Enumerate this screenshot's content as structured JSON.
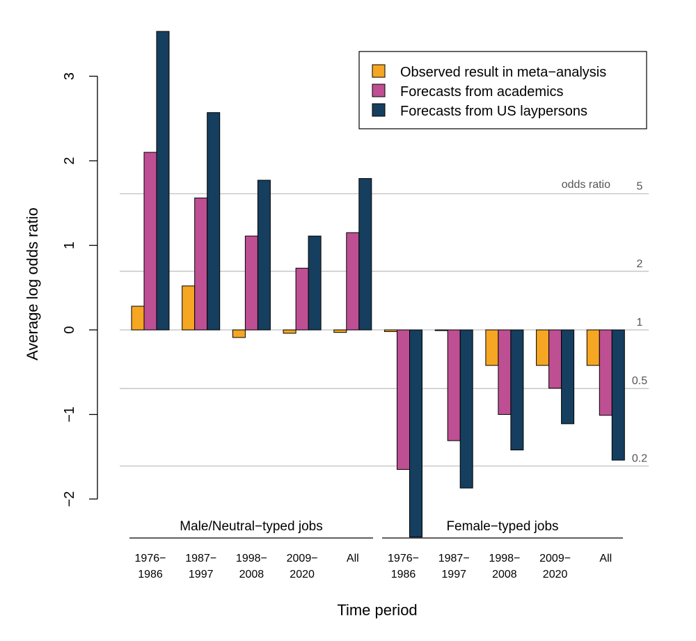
{
  "chart_data": {
    "type": "bar",
    "title": "",
    "xlabel": "Time period",
    "ylabel": "Average log odds ratio",
    "ylim": [
      -2.45,
      3.6
    ],
    "yticks": [
      -2,
      -1,
      0,
      1,
      2,
      3
    ],
    "ytick_labels": [
      "−2",
      "−1",
      "0",
      "1",
      "2",
      "3"
    ],
    "groups": [
      {
        "label": "Male/Neutral−typed jobs",
        "categories": [
          [
            "1976−",
            "1986"
          ],
          [
            "1987−",
            "1997"
          ],
          [
            "1998−",
            "2008"
          ],
          [
            "2009−",
            "2020"
          ],
          [
            "All"
          ]
        ]
      },
      {
        "label": "Female−typed jobs",
        "categories": [
          [
            "1976−",
            "1986"
          ],
          [
            "1987−",
            "1997"
          ],
          [
            "1998−",
            "2008"
          ],
          [
            "2009−",
            "2020"
          ],
          [
            "All"
          ]
        ]
      }
    ],
    "series": [
      {
        "name": "Observed result in meta−analysis",
        "color": "#F5A623",
        "values": [
          0.28,
          0.52,
          -0.09,
          -0.04,
          -0.03,
          -0.02,
          0.0,
          -0.42,
          -0.42,
          -0.42
        ]
      },
      {
        "name": "Forecasts from academics",
        "color": "#BE4F93",
        "values": [
          2.1,
          1.56,
          1.11,
          0.73,
          1.15,
          -1.65,
          -1.31,
          -1.0,
          -0.69,
          -1.01
        ]
      },
      {
        "name": "Forecasts from US laypersons",
        "color": "#163E5E",
        "values": [
          3.53,
          2.57,
          1.77,
          1.11,
          1.79,
          -2.45,
          -1.87,
          -1.42,
          -1.11,
          -1.54
        ]
      }
    ],
    "odds_ratio_axis": {
      "title": "odds ratio",
      "ticks": [
        {
          "label": "5",
          "value": 5
        },
        {
          "label": "2",
          "value": 2
        },
        {
          "label": "1",
          "value": 1
        },
        {
          "label": "0.5",
          "value": 0.5
        },
        {
          "label": "0.2",
          "value": 0.2
        }
      ]
    },
    "legend_position": "top-right",
    "grid": false
  }
}
